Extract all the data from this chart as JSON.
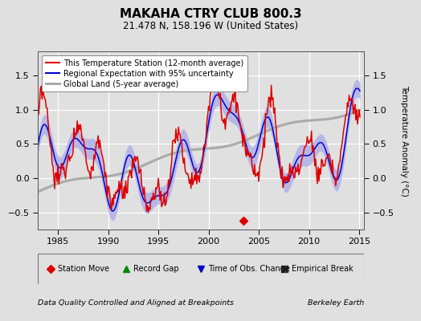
{
  "title": "MAKAHA CTRY CLUB 800.3",
  "subtitle": "21.478 N, 158.196 W (United States)",
  "xlabel_left": "Data Quality Controlled and Aligned at Breakpoints",
  "xlabel_right": "Berkeley Earth",
  "ylabel": "Temperature Anomaly (°C)",
  "xlim": [
    1983.0,
    2015.5
  ],
  "ylim": [
    -0.75,
    1.85
  ],
  "yticks": [
    -0.5,
    0,
    0.5,
    1.0,
    1.5
  ],
  "xticks": [
    1985,
    1990,
    1995,
    2000,
    2005,
    2010,
    2015
  ],
  "background_color": "#e0e0e0",
  "plot_bg_color": "#e0e0e0",
  "grid_color": "#ffffff",
  "station_color": "#dd0000",
  "regional_color": "#0000cc",
  "regional_fill_color": "#b0b0e8",
  "global_color": "#aaaaaa",
  "legend_items": [
    "This Temperature Station (12-month average)",
    "Regional Expectation with 95% uncertainty",
    "Global Land (5-year average)"
  ]
}
